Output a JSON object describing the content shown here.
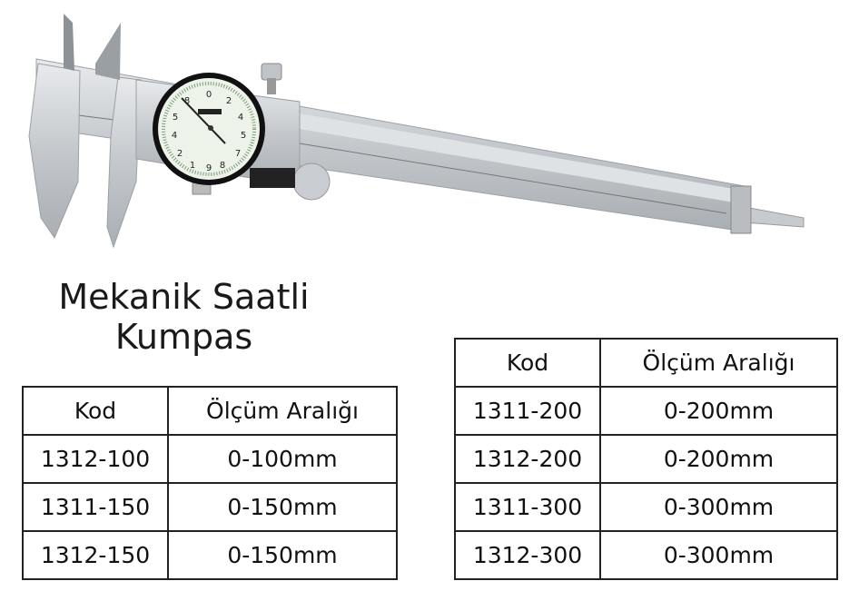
{
  "product": {
    "title_line1": "Mekanik Saatli",
    "title_line2": "Kumpas",
    "image": "dial-caliper"
  },
  "table_left": {
    "headers": [
      "Kod",
      "Ölçüm Aralığı"
    ],
    "rows": [
      [
        "1312-100",
        "0-100mm"
      ],
      [
        "1311-150",
        "0-150mm"
      ],
      [
        "1312-150",
        "0-150mm"
      ]
    ]
  },
  "table_right": {
    "headers": [
      "Kod",
      "Ölçüm Aralığı"
    ],
    "rows": [
      [
        "1311-200",
        "0-200mm"
      ],
      [
        "1312-200",
        "0-200mm"
      ],
      [
        "1311-300",
        "0-300mm"
      ],
      [
        "1312-300",
        "0-300mm"
      ]
    ]
  }
}
